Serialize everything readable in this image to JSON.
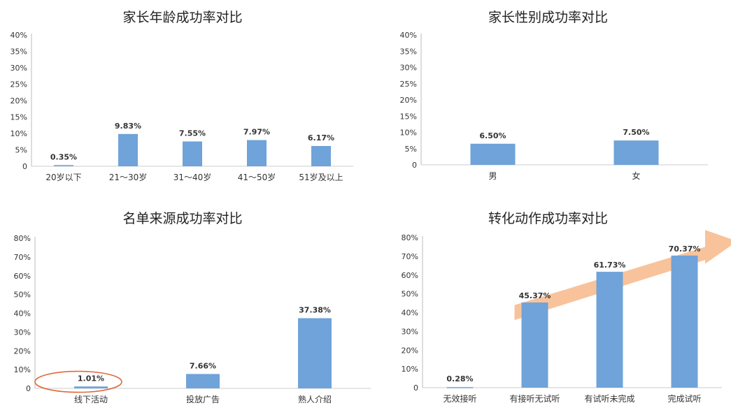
{
  "chart_data": [
    {
      "type": "bar",
      "title": "家长年龄成功率对比",
      "categories": [
        "20岁以下",
        "21～30岁",
        "31～40岁",
        "41～50岁",
        "51岁及以上"
      ],
      "values": [
        0.35,
        9.83,
        7.55,
        7.97,
        6.17
      ],
      "value_labels": [
        "0.35%",
        "9.83%",
        "7.55%",
        "7.97%",
        "6.17%"
      ],
      "yticks": [
        0,
        5,
        10,
        15,
        20,
        25,
        30,
        35,
        40
      ],
      "ytick_labels": [
        "0",
        "5%",
        "10%",
        "15%",
        "20%",
        "25%",
        "30%",
        "35%",
        "40%"
      ],
      "ylim": [
        0,
        40
      ],
      "bar_color": "#6fa3d9"
    },
    {
      "type": "bar",
      "title": "家长性别成功率对比",
      "categories": [
        "男",
        "女"
      ],
      "values": [
        6.5,
        7.5
      ],
      "value_labels": [
        "6.50%",
        "7.50%"
      ],
      "yticks": [
        0,
        5,
        10,
        15,
        20,
        25,
        30,
        35,
        40
      ],
      "ytick_labels": [
        "0",
        "5%",
        "10%",
        "15%",
        "20%",
        "25%",
        "30%",
        "35%",
        "40%"
      ],
      "ylim": [
        0,
        40
      ],
      "bar_color": "#6fa3d9"
    },
    {
      "type": "bar",
      "title": "名单来源成功率对比",
      "categories": [
        "线下活动",
        "投放广告",
        "熟人介绍"
      ],
      "values": [
        1.01,
        7.66,
        37.38
      ],
      "value_labels": [
        "1.01%",
        "7.66%",
        "37.38%"
      ],
      "yticks": [
        0,
        10,
        20,
        30,
        40,
        50,
        60,
        70,
        80
      ],
      "ytick_labels": [
        "0",
        "10%",
        "20%",
        "30%",
        "40%",
        "50%",
        "60%",
        "70%",
        "80%"
      ],
      "ylim": [
        0,
        80
      ],
      "bar_color": "#6fa3d9",
      "highlight_color": "#e06a3c"
    },
    {
      "type": "bar",
      "title": "转化动作成功率对比",
      "categories": [
        "无效接听",
        "有接听无试听",
        "有试听未完成",
        "完成试听"
      ],
      "values": [
        0.28,
        45.37,
        61.73,
        70.37
      ],
      "value_labels": [
        "0.28%",
        "45.37%",
        "61.73%",
        "70.37%"
      ],
      "yticks": [
        0,
        10,
        20,
        30,
        40,
        50,
        60,
        70,
        80
      ],
      "ytick_labels": [
        "0",
        "10%",
        "20%",
        "30%",
        "40%",
        "50%",
        "60%",
        "70%",
        "80%"
      ],
      "ylim": [
        0,
        80
      ],
      "bar_color": "#6fa3d9",
      "arrow_color": "#f7b98a",
      "arrow_label_color": "#b5462a"
    }
  ]
}
